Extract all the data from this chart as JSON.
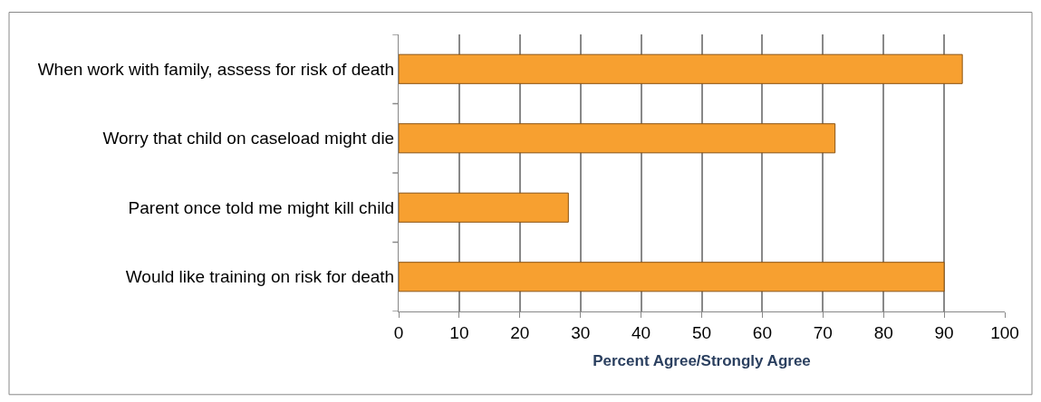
{
  "chart_data": {
    "type": "bar",
    "orientation": "horizontal",
    "xlabel": "Percent Agree/Strongly Agree",
    "categories": [
      "When work with family, assess for risk of death",
      "Worry that child on caseload might die",
      "Parent once told me might kill child",
      "Would like training on risk for death"
    ],
    "values": [
      93,
      72,
      28,
      90
    ],
    "color": "#f7a030",
    "xlim": [
      0,
      100
    ],
    "xticks": [
      0,
      10,
      20,
      30,
      40,
      50,
      60,
      70,
      80,
      90,
      100
    ],
    "grid": "x"
  }
}
